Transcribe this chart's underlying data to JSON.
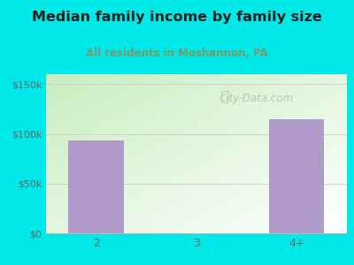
{
  "title": "Median family income by family size",
  "subtitle": "All residents in Moshannon, PA",
  "categories": [
    "2",
    "3",
    "4+"
  ],
  "values": [
    93000,
    0,
    115000
  ],
  "bar_color": "#b09aca",
  "outer_bg": "#00e8e8",
  "plot_bg_topleft": "#c8eec0",
  "plot_bg_bottomright": "#f5fff5",
  "title_color": "#222222",
  "subtitle_color": "#7a9a6a",
  "axis_label_color": "#666666",
  "yticks": [
    0,
    50000,
    100000,
    150000
  ],
  "ytick_labels": [
    "$0",
    "$50k",
    "$100k",
    "$150k"
  ],
  "ylim": [
    0,
    160000
  ],
  "watermark_text": "City-Data.com",
  "watermark_color": "#aaaaaa"
}
